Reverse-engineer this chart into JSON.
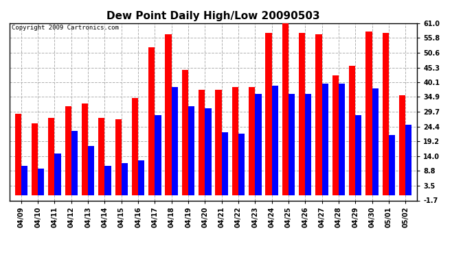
{
  "title": "Dew Point Daily High/Low 20090503",
  "copyright": "Copyright 2009 Cartronics.com",
  "dates": [
    "04/09",
    "04/10",
    "04/11",
    "04/12",
    "04/13",
    "04/14",
    "04/15",
    "04/16",
    "04/17",
    "04/18",
    "04/19",
    "04/20",
    "04/21",
    "04/22",
    "04/23",
    "04/24",
    "04/25",
    "04/26",
    "04/27",
    "04/28",
    "04/29",
    "04/30",
    "05/01",
    "05/02"
  ],
  "highs": [
    29.0,
    25.5,
    27.5,
    31.5,
    32.5,
    27.5,
    27.0,
    34.5,
    52.5,
    57.0,
    44.5,
    37.5,
    37.5,
    38.5,
    38.5,
    57.5,
    62.0,
    57.5,
    57.0,
    42.5,
    46.0,
    58.0,
    57.5,
    35.5
  ],
  "lows": [
    10.5,
    9.5,
    15.0,
    23.0,
    17.5,
    10.5,
    11.5,
    12.5,
    28.5,
    38.5,
    31.5,
    31.0,
    22.5,
    22.0,
    36.0,
    39.0,
    36.0,
    36.0,
    39.5,
    39.5,
    28.5,
    38.0,
    21.5,
    25.0
  ],
  "high_color": "#ff0000",
  "low_color": "#0000ff",
  "bg_color": "#ffffff",
  "grid_color": "#b0b0b0",
  "yticks": [
    -1.7,
    3.5,
    8.8,
    14.0,
    19.2,
    24.4,
    29.7,
    34.9,
    40.1,
    45.3,
    50.6,
    55.8,
    61.0
  ],
  "ymin": -1.7,
  "ymax": 61.0,
  "title_fontsize": 11,
  "copyright_fontsize": 6.5,
  "tick_fontsize": 7,
  "bar_width": 0.38
}
